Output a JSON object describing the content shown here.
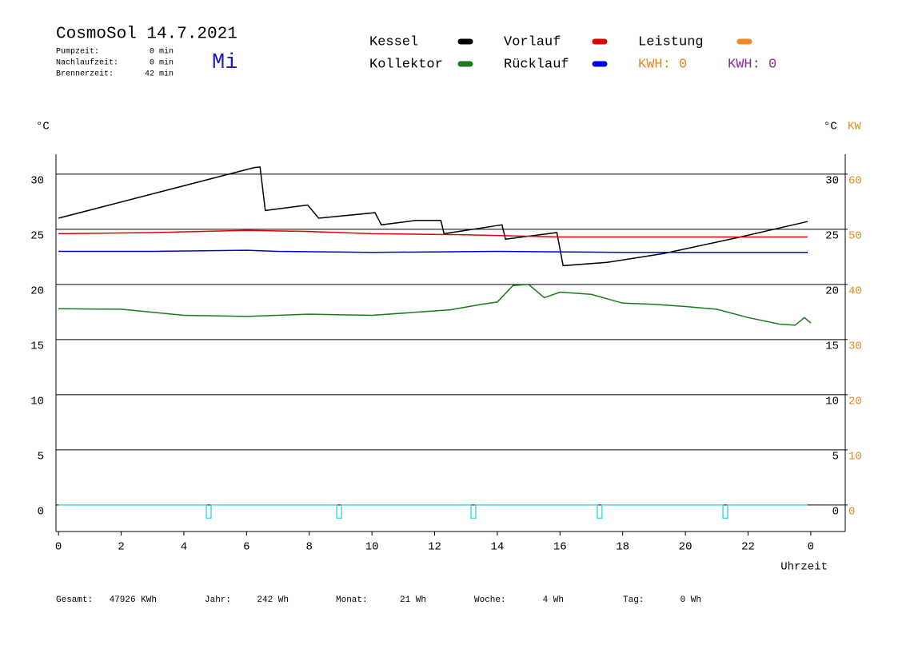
{
  "chart_data": {
    "type": "line",
    "title": "CosmoSol 14.7.2021",
    "day": "Mi",
    "info": [
      {
        "label": "Pumpzeit:",
        "value": "0 min"
      },
      {
        "label": "Nachlaufzeit:",
        "value": "0 min"
      },
      {
        "label": "Brennerzeit:",
        "value": "42 min"
      }
    ],
    "kwh": [
      {
        "text": "KWH: 0",
        "color": "#e08a1e"
      },
      {
        "text": "KWH: 0",
        "color": "#8b2a9b"
      }
    ],
    "ylabel": "°C",
    "y2label": "KW",
    "y2color": "#e08a1e",
    "xlabel": "Uhrzeit",
    "xlim": [
      -0.08,
      25.1
    ],
    "xticks": [
      0,
      2,
      4,
      6,
      8,
      10,
      12,
      14,
      16,
      18,
      20,
      22,
      {
        "value": 24,
        "label": "0"
      }
    ],
    "ylim": [
      -2.4,
      31.8
    ],
    "yticks": [
      0,
      5,
      10,
      15,
      20,
      25,
      30
    ],
    "y2lim": [
      -4.8,
      63.6
    ],
    "y2ticks": [
      0,
      10,
      20,
      30,
      40,
      50,
      60
    ],
    "grid": true,
    "series": [
      {
        "name": "Kessel",
        "color": "#000000",
        "x": [
          0,
          6.25,
          6.43,
          6.6,
          7.95,
          8.3,
          10.1,
          10.3,
          11.4,
          12.2,
          12.3,
          14.15,
          14.26,
          15.9,
          16.1,
          17.5,
          19.3,
          21.6,
          23.9
        ],
        "values": [
          26.0,
          30.6,
          30.65,
          26.7,
          27.2,
          26.0,
          26.5,
          25.4,
          25.8,
          25.8,
          24.6,
          25.4,
          24.1,
          24.7,
          21.7,
          22.0,
          22.8,
          24.2,
          25.7
        ]
      },
      {
        "name": "Kollektor",
        "color": "#1a7a1a",
        "x": [
          0,
          2,
          4,
          6,
          8,
          10,
          11.5,
          12.5,
          13.5,
          14,
          14.5,
          15,
          15.5,
          16,
          17,
          18,
          19,
          20,
          21,
          22,
          23,
          23.5,
          23.8,
          24
        ],
        "values": [
          17.8,
          17.75,
          17.2,
          17.1,
          17.3,
          17.2,
          17.5,
          17.7,
          18.2,
          18.4,
          19.9,
          20.0,
          18.8,
          19.3,
          19.1,
          18.3,
          18.2,
          18.0,
          17.75,
          17.0,
          16.4,
          16.3,
          17.0,
          16.5
        ]
      },
      {
        "name": "Vorlauf",
        "color": "#e00000",
        "x": [
          0,
          3,
          6,
          8,
          10,
          13,
          16,
          20,
          23.9
        ],
        "values": [
          24.6,
          24.7,
          24.9,
          24.8,
          24.6,
          24.5,
          24.3,
          24.3,
          24.3
        ]
      },
      {
        "name": "Rücklauf",
        "color": "#0000e0",
        "x": [
          0,
          3,
          6,
          7,
          10,
          14,
          18,
          23.9
        ],
        "values": [
          23.0,
          23.0,
          23.1,
          23.0,
          22.9,
          23.0,
          22.9,
          22.9
        ]
      },
      {
        "name": "Leistung",
        "color": "#f08a1e",
        "x": [
          0,
          23.9
        ],
        "values": [
          null,
          null
        ]
      },
      {
        "color": "#40e0e0",
        "x": [
          0,
          4.72,
          4.72,
          4.87,
          4.87,
          8.88,
          8.88,
          9.03,
          9.03,
          13.16,
          13.16,
          13.31,
          13.31,
          17.19,
          17.19,
          17.34,
          17.34,
          21.2,
          21.2,
          21.35,
          21.35,
          23.9
        ],
        "values": [
          0,
          0,
          -1.2,
          -1.2,
          0,
          0,
          -1.2,
          -1.2,
          0,
          0,
          -1.2,
          -1.2,
          0,
          0,
          -1.2,
          -1.2,
          0,
          0,
          -1.2,
          -1.2,
          0,
          0
        ]
      }
    ],
    "totals": [
      {
        "label": "Gesamt:",
        "value": "47926 KWh"
      },
      {
        "label": "Jahr:",
        "value": "242 Wh"
      },
      {
        "label": "Monat:",
        "value": "21 Wh"
      },
      {
        "label": "Woche:",
        "value": "4 Wh"
      },
      {
        "label": "Tag:",
        "value": "0 Wh"
      }
    ]
  }
}
